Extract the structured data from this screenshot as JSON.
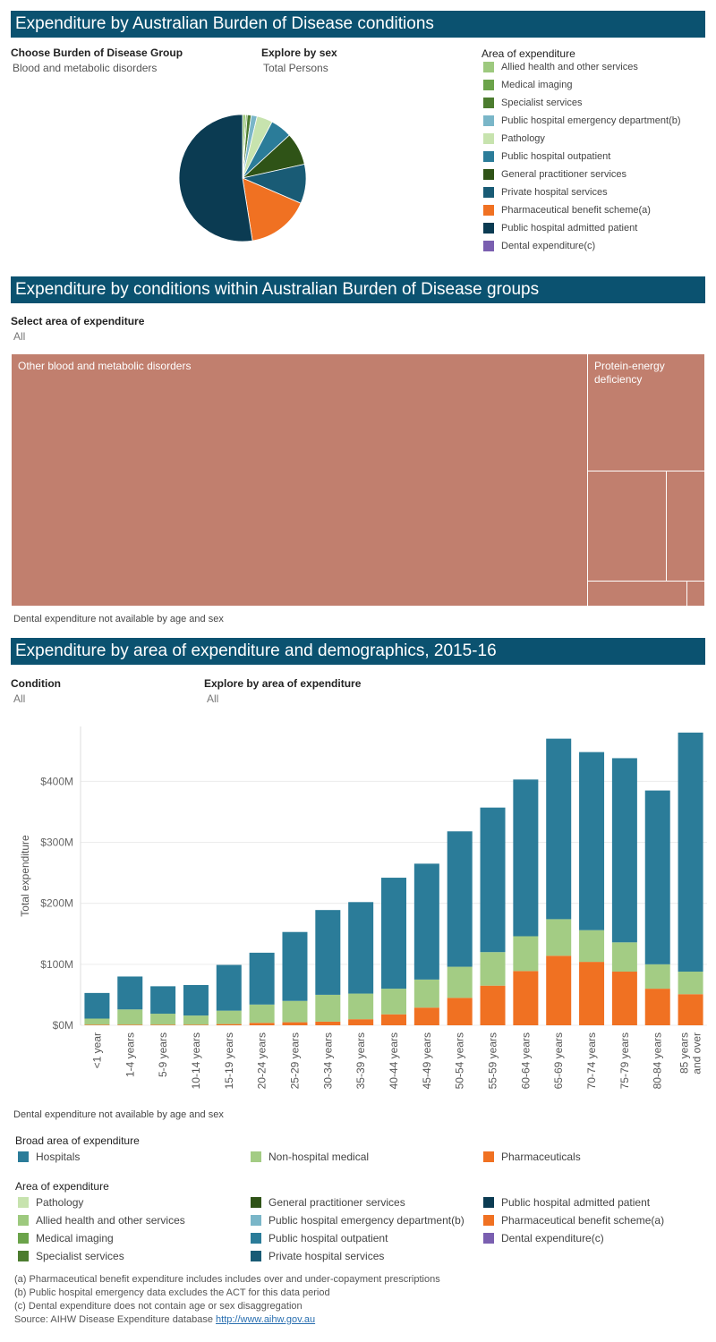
{
  "section1": {
    "title": "Expenditure by Australian Burden of Disease conditions",
    "filter_group_label": "Choose Burden of Disease Group",
    "filter_group_value": "Blood and metabolic disorders",
    "filter_sex_label": "Explore by sex",
    "filter_sex_value": "Total Persons",
    "legend_title": "Area of expenditure",
    "legend": [
      {
        "label": "Allied health and other services",
        "color": "#9dc97e"
      },
      {
        "label": "Medical imaging",
        "color": "#6ba34a"
      },
      {
        "label": "Specialist services",
        "color": "#4c7c2f"
      },
      {
        "label": "Public hospital emergency department(b)",
        "color": "#7ab6c8"
      },
      {
        "label": "Pathology",
        "color": "#c7e3ae"
      },
      {
        "label": "Public hospital outpatient",
        "color": "#2b7c99"
      },
      {
        "label": "General practitioner services",
        "color": "#2f5317"
      },
      {
        "label": "Private hospital services",
        "color": "#195b75"
      },
      {
        "label": "Pharmaceutical benefit scheme(a)",
        "color": "#f07122"
      },
      {
        "label": "Public hospital admitted patient",
        "color": "#0b3b52"
      },
      {
        "label": "Dental expenditure(c)",
        "color": "#7a5fb0"
      }
    ]
  },
  "chart_data": [
    {
      "type": "pie",
      "title": "",
      "slices": [
        {
          "label": "Allied health and other services",
          "value": 0.8,
          "color": "#9dc97e"
        },
        {
          "label": "Medical imaging",
          "value": 0.4,
          "color": "#6ba34a"
        },
        {
          "label": "Specialist services",
          "value": 1.0,
          "color": "#4c7c2f"
        },
        {
          "label": "Public hospital emergency department(b)",
          "value": 1.5,
          "color": "#7ab6c8"
        },
        {
          "label": "Pathology",
          "value": 4.0,
          "color": "#c7e3ae"
        },
        {
          "label": "Public hospital outpatient",
          "value": 5.5,
          "color": "#2b7c99"
        },
        {
          "label": "General practitioner services",
          "value": 8.3,
          "color": "#2f5317"
        },
        {
          "label": "Private hospital services",
          "value": 10.0,
          "color": "#195b75"
        },
        {
          "label": "Pharmaceutical benefit scheme(a)",
          "value": 16.0,
          "color": "#f07122"
        },
        {
          "label": "Public hospital admitted patient",
          "value": 52.5,
          "color": "#0b3b52"
        },
        {
          "label": "Dental expenditure(c)",
          "value": 0.0,
          "color": "#7a5fb0"
        }
      ]
    },
    {
      "type": "bar",
      "stacked": true,
      "title": "",
      "ylabel": "Total expenditure",
      "xlabel": "",
      "ylim": [
        0,
        490
      ],
      "yticks": [
        0,
        100,
        200,
        300,
        400
      ],
      "ytick_labels": [
        "$0M",
        "$100M",
        "$200M",
        "$300M",
        "$400M"
      ],
      "grid": true,
      "categories": [
        "<1 year",
        "1-4 years",
        "5-9 years",
        "10-14 years",
        "15-19 years",
        "20-24 years",
        "25-29 years",
        "30-34 years",
        "35-39 years",
        "40-44 years",
        "45-49 years",
        "50-54 years",
        "55-59 years",
        "60-64 years",
        "65-69 years",
        "70-74 years",
        "75-79 years",
        "80-84 years",
        "85 years and over"
      ],
      "category_lines": [
        [
          "<1 year"
        ],
        [
          "1-4 years"
        ],
        [
          "5-9 years"
        ],
        [
          "10-14 years"
        ],
        [
          "15-19 years"
        ],
        [
          "20-24 years"
        ],
        [
          "25-29 years"
        ],
        [
          "30-34 years"
        ],
        [
          "35-39 years"
        ],
        [
          "40-44 years"
        ],
        [
          "45-49 years"
        ],
        [
          "50-54 years"
        ],
        [
          "55-59 years"
        ],
        [
          "60-64 years"
        ],
        [
          "65-69 years"
        ],
        [
          "70-74 years"
        ],
        [
          "75-79 years"
        ],
        [
          "80-84 years"
        ],
        [
          "85 years",
          "and over"
        ]
      ],
      "series": [
        {
          "name": "Pharmaceuticals",
          "color": "#f07122",
          "values": [
            1,
            1,
            1,
            1,
            2,
            4,
            5,
            6,
            10,
            18,
            29,
            45,
            65,
            89,
            114,
            104,
            88,
            60,
            51
          ]
        },
        {
          "name": "Non-hospital medical",
          "color": "#a3cc84",
          "values": [
            10,
            25,
            18,
            15,
            22,
            30,
            35,
            44,
            42,
            42,
            46,
            51,
            55,
            57,
            60,
            52,
            48,
            40,
            37
          ]
        },
        {
          "name": "Hospitals",
          "color": "#2b7c99",
          "values": [
            42,
            54,
            45,
            50,
            75,
            85,
            113,
            139,
            150,
            182,
            190,
            222,
            237,
            257,
            296,
            292,
            302,
            285,
            392
          ]
        }
      ]
    }
  ],
  "section2": {
    "title": "Expenditure by conditions within Australian Burden of Disease groups",
    "filter_label": "Select area of expenditure",
    "filter_value": "All",
    "treemap": {
      "tiles": [
        {
          "label": "Other blood and metabolic disorders",
          "color": "#c17f6e"
        },
        {
          "label": "Protein-energy deficiency",
          "color": "#c17f6e"
        },
        {
          "label": "",
          "color": "#c17f6e"
        },
        {
          "label": "",
          "color": "#c17f6e"
        },
        {
          "label": "",
          "color": "#c17f6e"
        },
        {
          "label": "",
          "color": "#c17f6e"
        }
      ]
    },
    "note": "Dental expenditure not available by age and sex"
  },
  "section3": {
    "title": "Expenditure by area of expenditure and demographics, 2015-16",
    "filter_condition_label": "Condition",
    "filter_condition_value": "All",
    "filter_area_label": "Explore by area of expenditure",
    "filter_area_value": "All",
    "note": "Dental expenditure not available by age and sex",
    "broad_legend_title": "Broad area of expenditure",
    "broad_legend": [
      {
        "label": "Hospitals",
        "color": "#2b7c99"
      },
      {
        "label": "Non-hospital medical",
        "color": "#a3cc84"
      },
      {
        "label": "Pharmaceuticals",
        "color": "#f07122"
      }
    ],
    "area_legend_title": "Area of expenditure",
    "area_legend": [
      {
        "label": "Pathology",
        "color": "#c7e3ae"
      },
      {
        "label": "General practitioner services",
        "color": "#2f5317"
      },
      {
        "label": "Public hospital admitted patient",
        "color": "#0b3b52"
      },
      {
        "label": "Allied health and other services",
        "color": "#9dc97e"
      },
      {
        "label": "Public hospital emergency department(b)",
        "color": "#7ab6c8"
      },
      {
        "label": "Pharmaceutical benefit scheme(a)",
        "color": "#f07122"
      },
      {
        "label": "Medical imaging",
        "color": "#6ba34a"
      },
      {
        "label": "Public hospital outpatient",
        "color": "#2b7c99"
      },
      {
        "label": "Dental expenditure(c)",
        "color": "#7a5fb0"
      },
      {
        "label": "Specialist services",
        "color": "#4c7c2f"
      },
      {
        "label": "Private hospital services",
        "color": "#195b75"
      }
    ]
  },
  "footnotes": {
    "a": "(a) Pharmaceutical benefit expenditure includes includes over and under-copayment prescriptions",
    "b": "(b) Public hospital emergency data excludes the ACT for this data period",
    "c": "(c) Dental expenditure does not contain age or sex disaggregation",
    "source_prefix": "Source: AIHW Disease Expenditure database ",
    "source_link": "http://www.aihw.gov.au"
  }
}
